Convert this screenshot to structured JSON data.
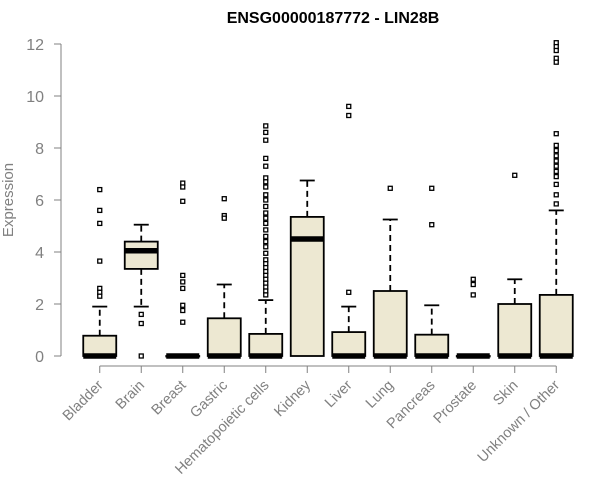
{
  "chart_data": {
    "type": "box",
    "title": "ENSG00000187772 - LIN28B",
    "xlabel": "",
    "ylabel": "Expression",
    "ylim": [
      0,
      12
    ],
    "yticks": [
      0,
      2,
      4,
      6,
      8,
      10,
      12
    ],
    "grid": false,
    "box_fill": "#ede8d2",
    "categories": [
      "Bladder",
      "Brain",
      "Breast",
      "Gastric",
      "Hematopoietic cells",
      "Kidney",
      "Liver",
      "Lung",
      "Pancreas",
      "Prostate",
      "Skin",
      "Unknown / Other"
    ],
    "boxes": [
      {
        "category": "Bladder",
        "whisker_low": 0,
        "q1": 0,
        "median": 0,
        "q3": 0.78,
        "whisker_high": 1.9,
        "outliers": [
          6.4,
          5.6,
          5.1,
          3.65,
          2.6,
          2.45,
          2.3
        ]
      },
      {
        "category": "Brain",
        "whisker_low": 1.9,
        "q1": 3.35,
        "median": 4.05,
        "q3": 4.4,
        "whisker_high": 5.05,
        "outliers": [
          1.6,
          1.25,
          0
        ]
      },
      {
        "category": "Breast",
        "whisker_low": 0,
        "q1": 0,
        "median": 0,
        "q3": 0,
        "whisker_high": 0,
        "outliers": [
          6.65,
          6.5,
          5.95,
          3.1,
          2.85,
          2.6,
          1.95,
          1.75,
          1.3
        ]
      },
      {
        "category": "Gastric",
        "whisker_low": 0,
        "q1": 0,
        "median": 0,
        "q3": 1.45,
        "whisker_high": 2.75,
        "outliers": [
          6.05,
          5.4,
          5.3
        ]
      },
      {
        "category": "Hematopoietic cells",
        "whisker_low": 0,
        "q1": 0,
        "median": 0,
        "q3": 0.85,
        "whisker_high": 2.15,
        "outliers": [
          8.85,
          8.6,
          8.3,
          7.6,
          7.3,
          6.85,
          6.7,
          6.5,
          6.2,
          6.0,
          5.75,
          5.5,
          5.3,
          5.1,
          4.85,
          4.6,
          4.4,
          4.2,
          3.95,
          3.7,
          3.55,
          3.4,
          3.25,
          3.1,
          2.95,
          2.8,
          2.65,
          2.5,
          2.35
        ]
      },
      {
        "category": "Kidney",
        "whisker_low": 0,
        "q1": 0,
        "median": 4.5,
        "q3": 5.35,
        "whisker_high": 6.75,
        "outliers": []
      },
      {
        "category": "Liver",
        "whisker_low": 0,
        "q1": 0,
        "median": 0,
        "q3": 0.92,
        "whisker_high": 1.9,
        "outliers": [
          9.6,
          9.25,
          2.45
        ]
      },
      {
        "category": "Lung",
        "whisker_low": 0,
        "q1": 0,
        "median": 0,
        "q3": 2.5,
        "whisker_high": 5.25,
        "outliers": [
          6.45
        ]
      },
      {
        "category": "Pancreas",
        "whisker_low": 0,
        "q1": 0,
        "median": 0,
        "q3": 0.82,
        "whisker_high": 1.95,
        "outliers": [
          6.45,
          5.05
        ]
      },
      {
        "category": "Prostate",
        "whisker_low": 0,
        "q1": 0,
        "median": 0,
        "q3": 0,
        "whisker_high": 0,
        "outliers": [
          2.95,
          2.75,
          2.35
        ]
      },
      {
        "category": "Skin",
        "whisker_low": 0,
        "q1": 0,
        "median": 0,
        "q3": 2.0,
        "whisker_high": 2.95,
        "outliers": [
          6.95
        ]
      },
      {
        "category": "Unknown / Other",
        "whisker_low": 0,
        "q1": 0,
        "median": 0,
        "q3": 2.35,
        "whisker_high": 5.6,
        "outliers": [
          12.05,
          11.9,
          11.75,
          11.45,
          11.3,
          8.55,
          8.1,
          7.9,
          7.7,
          7.5,
          7.3,
          7.1,
          6.9,
          6.6,
          6.2,
          5.85
        ]
      }
    ]
  }
}
